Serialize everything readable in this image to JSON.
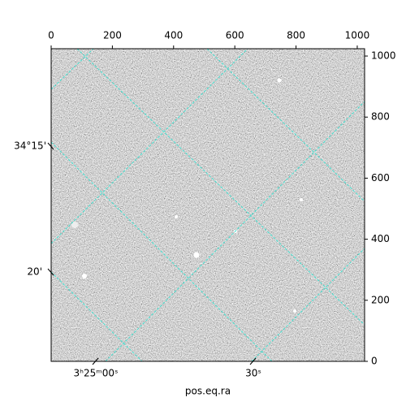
{
  "chart_data": {
    "type": "image",
    "xlabel": "pos.eq.ra",
    "xlim": [
      0,
      1024
    ],
    "ylim": [
      0,
      1024
    ],
    "xticks": [
      0,
      200,
      400,
      600,
      800,
      1000
    ],
    "yticks": [
      0,
      200,
      400,
      600,
      800,
      1000
    ],
    "left_labels": [
      "34°15'",
      "20'"
    ],
    "bottom_labels": [
      "3ʰ25ᵐ00ˢ",
      "30ˢ"
    ],
    "grid_color": "#40e0d0"
  }
}
